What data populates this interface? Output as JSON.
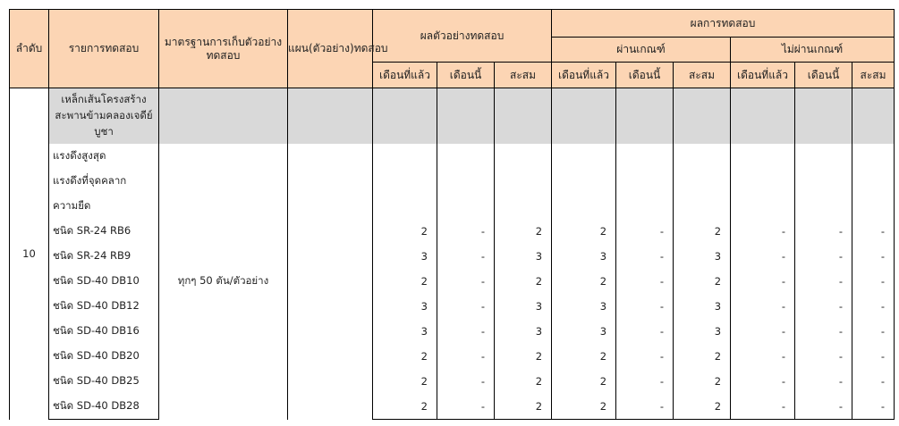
{
  "headers": {
    "no": "ลำดับ",
    "item": "รายการทดสอบ",
    "standard": "มาตรฐานการเก็บตัวอย่างทดสอบ",
    "plan": "แผน(ตัวอย่าง)ทดสอบ",
    "sample_result": "ผลตัวอย่างทดสอบ",
    "test_result": "ผลการทดสอบ",
    "pass": "ผ่านเกณฑ์",
    "fail": "ไม่ผ่านเกณฑ์",
    "last_month": "เดือนที่แล้ว",
    "this_month": "เดือนนี้",
    "cumulative": "สะสม"
  },
  "row_no": "10",
  "group_title": "เหล็กเส้นโครงสร้างสะพานข้ามคลองเจดีย์บูชา",
  "standard_value": "ทุกๆ 50 ตัน/ตัวอย่าง",
  "plan_value": "",
  "rows": [
    {
      "item": "แรงดึงสูงสุด",
      "v": [
        "",
        "",
        "",
        "",
        "",
        "",
        "",
        "",
        ""
      ]
    },
    {
      "item": "แรงดึงที่จุดคลาก",
      "v": [
        "",
        "",
        "",
        "",
        "",
        "",
        "",
        "",
        ""
      ]
    },
    {
      "item": "ความยืด",
      "v": [
        "",
        "",
        "",
        "",
        "",
        "",
        "",
        "",
        ""
      ]
    },
    {
      "item": "ชนิด SR-24 RB6",
      "v": [
        "2",
        "-",
        "2",
        "2",
        "-",
        "2",
        "-",
        "-",
        "-"
      ]
    },
    {
      "item": "ชนิด SR-24 RB9",
      "v": [
        "3",
        "-",
        "3",
        "3",
        "-",
        "3",
        "-",
        "-",
        "-"
      ]
    },
    {
      "item": "ชนิด SD-40 DB10",
      "v": [
        "2",
        "-",
        "2",
        "2",
        "-",
        "2",
        "-",
        "-",
        "-"
      ]
    },
    {
      "item": "ชนิด SD-40 DB12",
      "v": [
        "3",
        "-",
        "3",
        "3",
        "-",
        "3",
        "-",
        "-",
        "-"
      ]
    },
    {
      "item": "ชนิด SD-40 DB16",
      "v": [
        "3",
        "-",
        "3",
        "3",
        "-",
        "3",
        "-",
        "-",
        "-"
      ]
    },
    {
      "item": "ชนิด SD-40 DB20",
      "v": [
        "2",
        "-",
        "2",
        "2",
        "-",
        "2",
        "-",
        "-",
        "-"
      ]
    },
    {
      "item": "ชนิด SD-40 DB25",
      "v": [
        "2",
        "-",
        "2",
        "2",
        "-",
        "2",
        "-",
        "-",
        "-"
      ]
    },
    {
      "item": "ชนิด SD-40 DB28",
      "v": [
        "2",
        "-",
        "2",
        "2",
        "-",
        "2",
        "-",
        "-",
        "-"
      ]
    }
  ]
}
